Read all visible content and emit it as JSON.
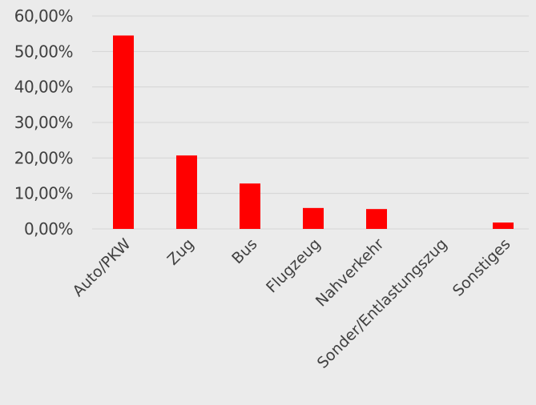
{
  "chart_data": {
    "type": "bar",
    "categories": [
      "Auto/PKW",
      "Zug",
      "Bus",
      "Flugzeug",
      "Nahverkehr",
      "Sonder/Entlastungszug",
      "Sonstiges"
    ],
    "values": [
      54.5,
      20.7,
      12.8,
      5.9,
      5.6,
      0.0,
      1.8
    ],
    "ylim": [
      0,
      60
    ],
    "yticks": [
      "0,00%",
      "10,00%",
      "20,00%",
      "30,00%",
      "40,00%",
      "50,00%",
      "60,00%"
    ],
    "ytick_values": [
      0,
      10,
      20,
      30,
      40,
      50,
      60
    ],
    "bar_color": "#ff0000",
    "grid": true,
    "legend": "none"
  }
}
